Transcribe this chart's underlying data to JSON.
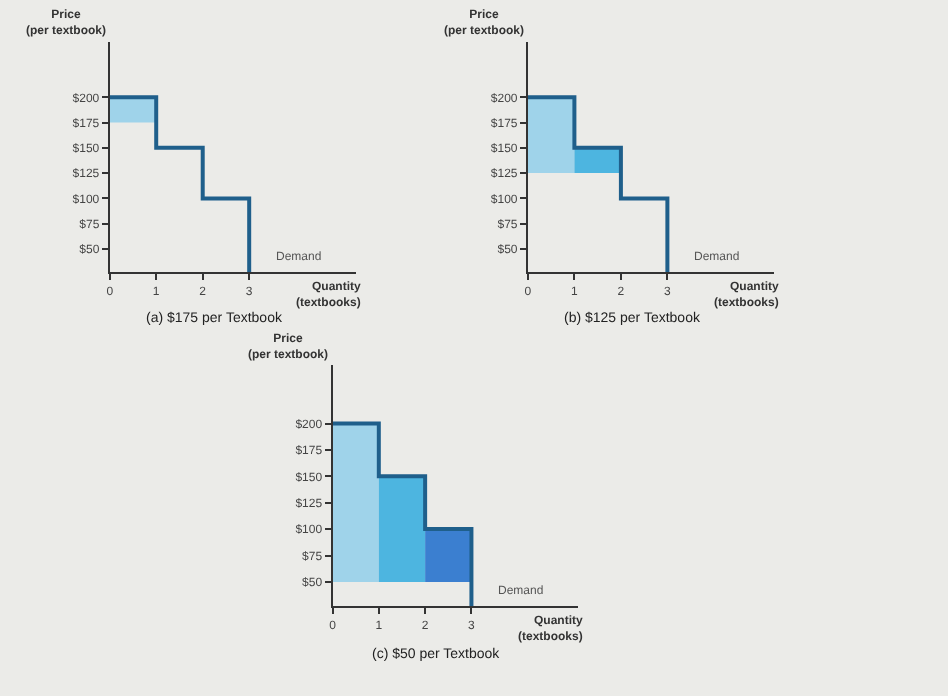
{
  "chart_data": [
    {
      "type": "line",
      "title": "(a) $175 per Textbook",
      "xlabel": "Quantity\n(textbooks)",
      "ylabel": "Price\n(per textbook)",
      "xlim": [
        0,
        5.3
      ],
      "xticks": [
        0,
        1,
        2,
        3
      ],
      "ylim": [
        27,
        255
      ],
      "yticks": [
        {
          "value": 50,
          "label": "$50"
        },
        {
          "value": 75,
          "label": "$75"
        },
        {
          "value": 100,
          "label": "$100"
        },
        {
          "value": 125,
          "label": "$125"
        },
        {
          "value": 150,
          "label": "$150"
        },
        {
          "value": 175,
          "label": "$175"
        },
        {
          "value": 200,
          "label": "$200"
        }
      ],
      "grid": false,
      "series": [
        {
          "type": "bar",
          "x": [
            0.5
          ],
          "base": [
            175
          ],
          "values": [
            25
          ],
          "color": "#9fd3ea"
        },
        {
          "name": "Demand",
          "color": "#1f5f8b",
          "x": [
            0,
            1,
            1,
            2,
            2,
            3,
            3
          ],
          "values": [
            200,
            200,
            150,
            150,
            100,
            100,
            27
          ]
        }
      ]
    },
    {
      "type": "line",
      "title": "(b) $125 per Textbook",
      "xlabel": "Quantity\n(textbooks)",
      "ylabel": "Price\n(per textbook)",
      "xlim": [
        0,
        5.3
      ],
      "xticks": [
        0,
        1,
        2,
        3
      ],
      "ylim": [
        27,
        255
      ],
      "yticks": [
        {
          "value": 50,
          "label": "$50"
        },
        {
          "value": 75,
          "label": "$75"
        },
        {
          "value": 100,
          "label": "$100"
        },
        {
          "value": 125,
          "label": "$125"
        },
        {
          "value": 150,
          "label": "$150"
        },
        {
          "value": 175,
          "label": "$175"
        },
        {
          "value": 200,
          "label": "$200"
        }
      ],
      "grid": false,
      "series": [
        {
          "type": "bar",
          "x": [
            0.5
          ],
          "base": [
            125
          ],
          "values": [
            75
          ],
          "color": "#9fd3ea"
        },
        {
          "type": "bar",
          "x": [
            1.5
          ],
          "base": [
            125
          ],
          "values": [
            25
          ],
          "color": "#4db5e0"
        },
        {
          "name": "Demand",
          "color": "#1f5f8b",
          "x": [
            0,
            1,
            1,
            2,
            2,
            3,
            3
          ],
          "values": [
            200,
            200,
            150,
            150,
            100,
            100,
            27
          ]
        }
      ]
    },
    {
      "type": "line",
      "title": "(c) $50 per Textbook",
      "xlabel": "Quantity\n(textbooks)",
      "ylabel": "Price\n(per textbook)",
      "xlim": [
        0,
        5.3
      ],
      "xticks": [
        0,
        1,
        2,
        3
      ],
      "ylim": [
        27,
        255
      ],
      "yticks": [
        {
          "value": 50,
          "label": "$50"
        },
        {
          "value": 75,
          "label": "$75"
        },
        {
          "value": 100,
          "label": "$100"
        },
        {
          "value": 125,
          "label": "$125"
        },
        {
          "value": 150,
          "label": "$150"
        },
        {
          "value": 175,
          "label": "$175"
        },
        {
          "value": 200,
          "label": "$200"
        }
      ],
      "grid": false,
      "series": [
        {
          "type": "bar",
          "x": [
            0.5
          ],
          "base": [
            50
          ],
          "values": [
            150
          ],
          "color": "#9fd3ea"
        },
        {
          "type": "bar",
          "x": [
            1.5
          ],
          "base": [
            50
          ],
          "values": [
            100
          ],
          "color": "#4db5e0"
        },
        {
          "type": "bar",
          "x": [
            2.5
          ],
          "base": [
            50
          ],
          "values": [
            50
          ],
          "color": "#3b7fd0"
        },
        {
          "name": "Demand",
          "color": "#1f5f8b",
          "x": [
            0,
            1,
            1,
            2,
            2,
            3,
            3
          ],
          "values": [
            200,
            200,
            150,
            150,
            100,
            100,
            27
          ]
        }
      ]
    }
  ]
}
